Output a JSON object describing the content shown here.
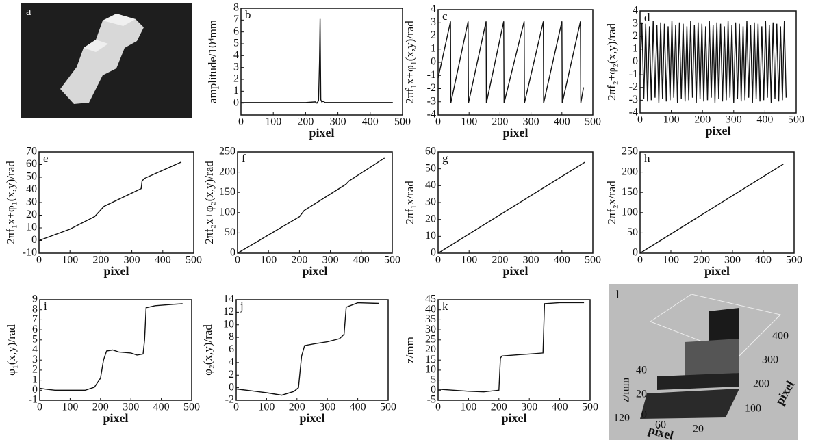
{
  "photo": {
    "label": "a"
  },
  "surface": {
    "label": "l",
    "zlabel": "z/mm",
    "zticks": [
      0,
      20,
      40
    ],
    "xlabel": "pixel",
    "xticks": [
      120,
      60,
      20
    ],
    "ylabel": "pixel",
    "yticks": [
      100,
      200,
      300,
      400
    ]
  },
  "chart_data": [
    {
      "type": "line",
      "label": "b",
      "xlabel": "pixel",
      "ylabel": "amplitude/10⁴mm",
      "color": "#111",
      "x": [
        0,
        200,
        230,
        235,
        240,
        243,
        245,
        247,
        250,
        255,
        260,
        300,
        470
      ],
      "values": [
        0.05,
        0.05,
        0.1,
        0.0,
        0.2,
        3.5,
        7.1,
        0.3,
        0.1,
        0.15,
        0.05,
        0.05,
        0.05
      ],
      "xlim": [
        0,
        500
      ],
      "xticks": [
        0,
        100,
        200,
        300,
        400,
        500
      ],
      "ylim": [
        -1,
        8
      ],
      "yticks": [
        0,
        1,
        2,
        3,
        4,
        5,
        6,
        7,
        8
      ]
    },
    {
      "type": "line",
      "label": "c",
      "xlabel": "pixel",
      "ylabel": "2πf₁x+φ₁(x,y)/rad",
      "color": "#111",
      "x": [
        0,
        40,
        41,
        97,
        98,
        155,
        156,
        212,
        213,
        278,
        279,
        340,
        341,
        400,
        401,
        460,
        461,
        470
      ],
      "values": [
        -1.2,
        3.1,
        -3.1,
        3.1,
        -3.1,
        3.1,
        -3.1,
        3.1,
        -3.1,
        3.1,
        -3.1,
        3.1,
        -3.1,
        3.1,
        -3.1,
        3.1,
        -3.1,
        -1.9
      ],
      "xlim": [
        0,
        500
      ],
      "xticks": [
        0,
        100,
        200,
        300,
        400,
        500
      ],
      "ylim": [
        -4,
        4
      ],
      "yticks": [
        -4,
        -3,
        -2,
        -1,
        0,
        1,
        2,
        3,
        4
      ]
    },
    {
      "type": "line",
      "label": "d",
      "xlabel": "pixel",
      "ylabel": "2πf₂+φ₂(x,y)/rad",
      "color": "#111",
      "x": [
        0,
        6,
        12,
        18,
        24,
        30,
        36,
        42,
        48,
        54,
        60,
        66,
        72,
        78,
        84,
        90,
        96,
        102,
        108,
        114,
        120,
        126,
        132,
        138,
        144,
        150,
        156,
        162,
        168,
        174,
        180,
        186,
        192,
        198,
        204,
        210,
        216,
        222,
        228,
        234,
        240,
        246,
        252,
        258,
        264,
        270,
        276,
        282,
        288,
        294,
        300,
        306,
        312,
        318,
        324,
        330,
        336,
        342,
        348,
        354,
        360,
        366,
        372,
        378,
        384,
        390,
        396,
        402,
        408,
        414,
        420,
        426,
        432,
        438,
        444,
        450,
        456,
        462,
        468
      ],
      "values": [
        -1.0,
        3.1,
        -2.9,
        3.0,
        -3.1,
        2.8,
        -3.0,
        3.2,
        -2.8,
        2.9,
        -3.2,
        3.1,
        -2.9,
        3.0,
        -3.1,
        2.8,
        -3.0,
        3.2,
        -2.8,
        2.9,
        -3.2,
        3.1,
        -2.9,
        3.0,
        -3.1,
        2.8,
        -3.0,
        3.2,
        -2.8,
        2.9,
        -3.2,
        3.1,
        -2.9,
        3.0,
        -3.1,
        2.8,
        -3.0,
        3.2,
        -2.8,
        2.9,
        -3.2,
        3.1,
        -2.9,
        3.0,
        -3.1,
        2.8,
        -3.0,
        3.2,
        -2.8,
        2.9,
        -3.2,
        3.1,
        -2.9,
        3.0,
        -3.1,
        2.8,
        -3.0,
        3.2,
        -2.8,
        2.9,
        -3.2,
        3.1,
        -2.9,
        3.0,
        -3.1,
        2.8,
        -3.0,
        3.2,
        -2.8,
        2.9,
        -3.2,
        3.1,
        -2.9,
        3.0,
        -3.1,
        2.8,
        -3.0,
        3.2,
        -2.8
      ],
      "xlim": [
        0,
        500
      ],
      "xticks": [
        0,
        100,
        200,
        300,
        400,
        500
      ],
      "ylim": [
        -4,
        4
      ],
      "yticks": [
        -4,
        -3,
        -2,
        -1,
        0,
        1,
        2,
        3,
        4
      ]
    },
    {
      "type": "line",
      "label": "e",
      "xlabel": "pixel",
      "ylabel": "2πf₁x+φ₁(x,y)/rad",
      "color": "#111",
      "x": [
        0,
        100,
        180,
        210,
        330,
        333,
        340,
        460
      ],
      "values": [
        0,
        9,
        19,
        27,
        41,
        47,
        49,
        62
      ],
      "xlim": [
        0,
        500
      ],
      "xticks": [
        0,
        100,
        200,
        300,
        400,
        500
      ],
      "ylim": [
        -10,
        70
      ],
      "yticks": [
        -10,
        0,
        10,
        20,
        30,
        40,
        50,
        60,
        70
      ]
    },
    {
      "type": "line",
      "label": "f",
      "xlabel": "pixel",
      "ylabel": "2πf₂x+φ₂(x,y)/rad",
      "color": "#111",
      "x": [
        0,
        100,
        200,
        215,
        350,
        360,
        475
      ],
      "values": [
        0,
        45,
        90,
        105,
        170,
        178,
        235
      ],
      "xlim": [
        0,
        500
      ],
      "xticks": [
        0,
        100,
        200,
        300,
        400,
        500
      ],
      "ylim": [
        0,
        250
      ],
      "yticks": [
        0,
        50,
        100,
        150,
        200,
        250
      ]
    },
    {
      "type": "line",
      "label": "g",
      "xlabel": "pixel",
      "ylabel": "2πf₁x/rad",
      "color": "#111",
      "x": [
        0,
        475
      ],
      "values": [
        0,
        54
      ],
      "xlim": [
        0,
        500
      ],
      "xticks": [
        0,
        100,
        200,
        300,
        400,
        500
      ],
      "ylim": [
        0,
        60
      ],
      "yticks": [
        0,
        10,
        20,
        30,
        40,
        50,
        60
      ]
    },
    {
      "type": "line",
      "label": "h",
      "xlabel": "pixel",
      "ylabel": "2πf₂x/rad",
      "color": "#111",
      "x": [
        0,
        465
      ],
      "values": [
        0,
        220
      ],
      "xlim": [
        0,
        500
      ],
      "xticks": [
        0,
        100,
        200,
        300,
        400,
        500
      ],
      "ylim": [
        0,
        250
      ],
      "yticks": [
        0,
        50,
        100,
        150,
        200,
        250
      ]
    },
    {
      "type": "line",
      "label": "i",
      "xlabel": "pixel",
      "ylabel": "φ₁(x,y)/rad",
      "color": "#111",
      "x": [
        0,
        20,
        50,
        100,
        150,
        180,
        200,
        210,
        220,
        240,
        260,
        300,
        320,
        340,
        345,
        350,
        380,
        420,
        470
      ],
      "values": [
        0.2,
        0.1,
        0,
        0,
        0,
        0.3,
        1.2,
        3,
        3.9,
        4,
        3.8,
        3.7,
        3.5,
        3.6,
        5,
        8.2,
        8.4,
        8.5,
        8.6
      ],
      "xlim": [
        0,
        500
      ],
      "xticks": [
        0,
        100,
        200,
        300,
        400,
        500
      ],
      "ylim": [
        -1,
        9
      ],
      "yticks": [
        -1,
        0,
        1,
        2,
        3,
        4,
        5,
        6,
        7,
        8,
        9
      ]
    },
    {
      "type": "line",
      "label": "j",
      "xlabel": "pixel",
      "ylabel": "φ₂(x,y)/rad",
      "color": "#111",
      "x": [
        0,
        50,
        100,
        150,
        190,
        205,
        215,
        225,
        260,
        300,
        340,
        355,
        362,
        400,
        470
      ],
      "values": [
        -0.2,
        -0.5,
        -0.8,
        -1.2,
        -0.6,
        0,
        5,
        6.7,
        7,
        7.3,
        7.8,
        8.5,
        12.8,
        13.5,
        13.4
      ],
      "xlim": [
        0,
        500
      ],
      "xticks": [
        0,
        100,
        200,
        300,
        400,
        500
      ],
      "ylim": [
        -2,
        14
      ],
      "yticks": [
        -2,
        0,
        2,
        4,
        6,
        8,
        10,
        12,
        14
      ]
    },
    {
      "type": "line",
      "label": "k",
      "xlabel": "pixel",
      "ylabel": "z/mm",
      "color": "#111",
      "x": [
        0,
        50,
        100,
        150,
        200,
        205,
        210,
        250,
        300,
        345,
        350,
        400,
        480
      ],
      "values": [
        0.5,
        0,
        -0.5,
        -0.8,
        0,
        16,
        17,
        17.5,
        18,
        18.5,
        43,
        43.5,
        43.5
      ],
      "xlim": [
        0,
        500
      ],
      "xticks": [
        0,
        100,
        200,
        300,
        400,
        500
      ],
      "ylim": [
        -5,
        45
      ],
      "yticks": [
        -5,
        0,
        5,
        10,
        15,
        20,
        25,
        30,
        35,
        40,
        45
      ]
    }
  ]
}
